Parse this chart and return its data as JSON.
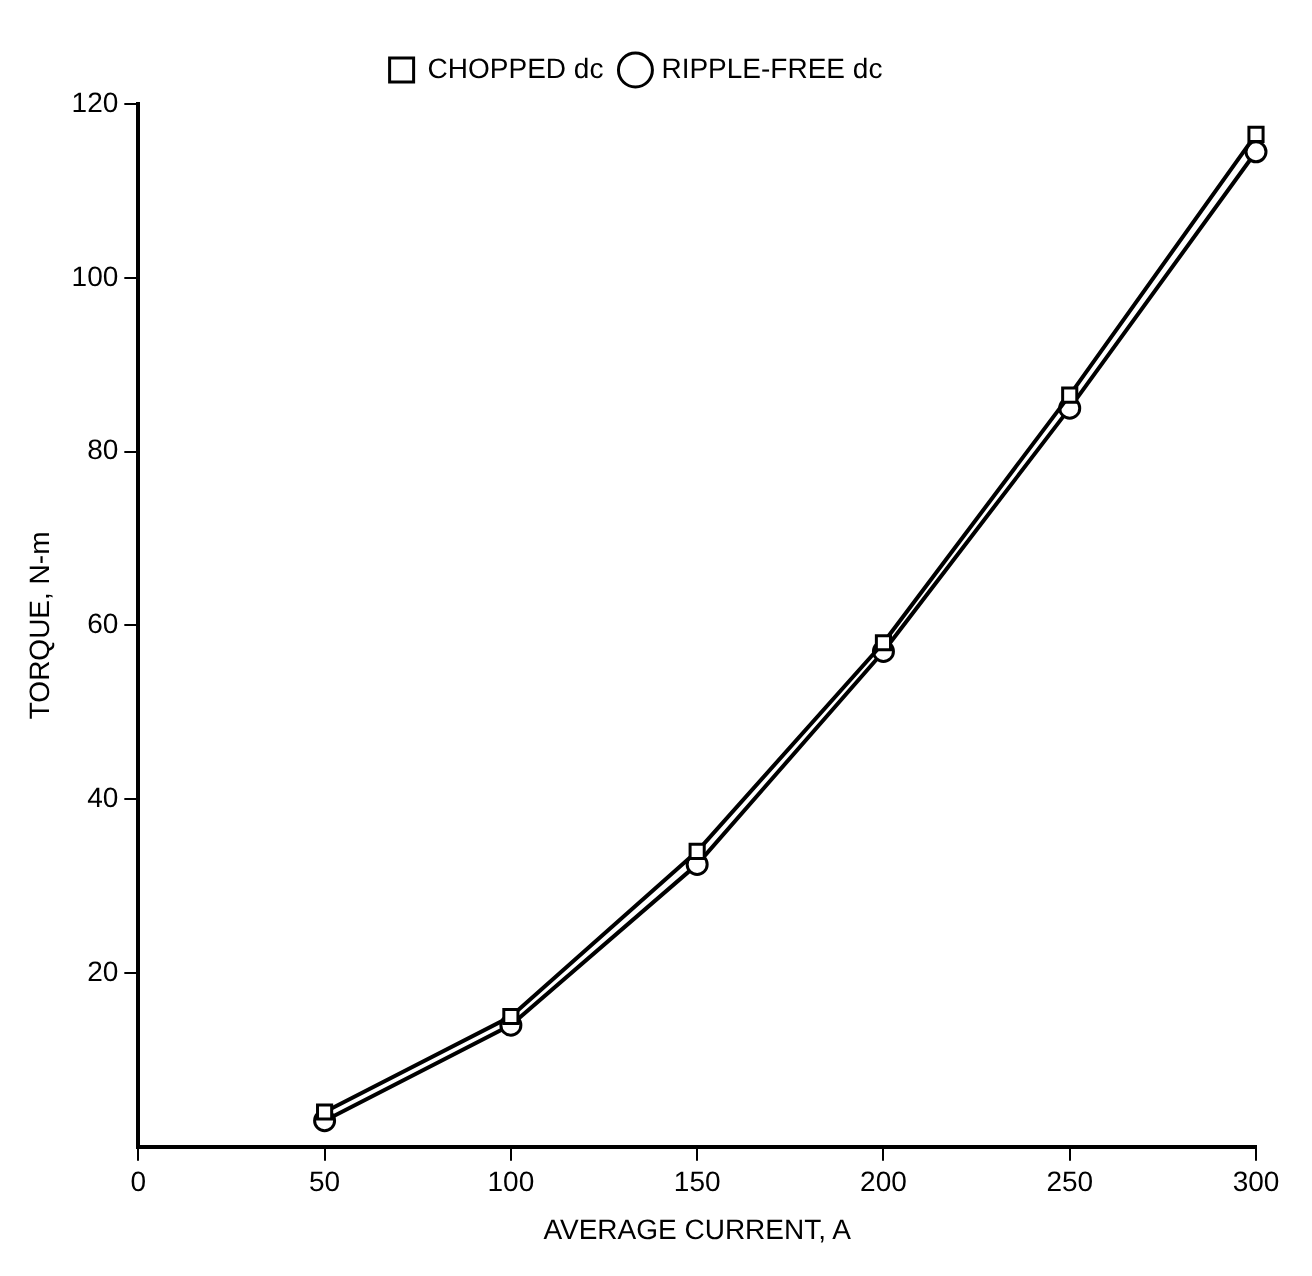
{
  "chart_data": {
    "type": "line",
    "xlabel": "AVERAGE CURRENT, A",
    "ylabel": "TORQUE, N-m",
    "x": [
      50,
      100,
      150,
      200,
      250,
      300
    ],
    "series": [
      {
        "name": "RIPPLE-FREE dc",
        "color": "#000000",
        "marker": "circle",
        "values": [
          3,
          14,
          32.5,
          57,
          85,
          114.5
        ]
      },
      {
        "name": "CHOPPED dc",
        "color": "#000000",
        "marker": "square",
        "values": [
          4,
          15,
          34,
          58,
          86.5,
          116.5
        ]
      }
    ],
    "xlim": [
      0,
      300
    ],
    "xticks": [
      0,
      50,
      100,
      150,
      200,
      250,
      300
    ],
    "ylim": [
      0,
      120
    ],
    "yticks": [
      20,
      40,
      60,
      80,
      100,
      120
    ],
    "grid": false,
    "legend": "top",
    "line_style": "solid"
  }
}
